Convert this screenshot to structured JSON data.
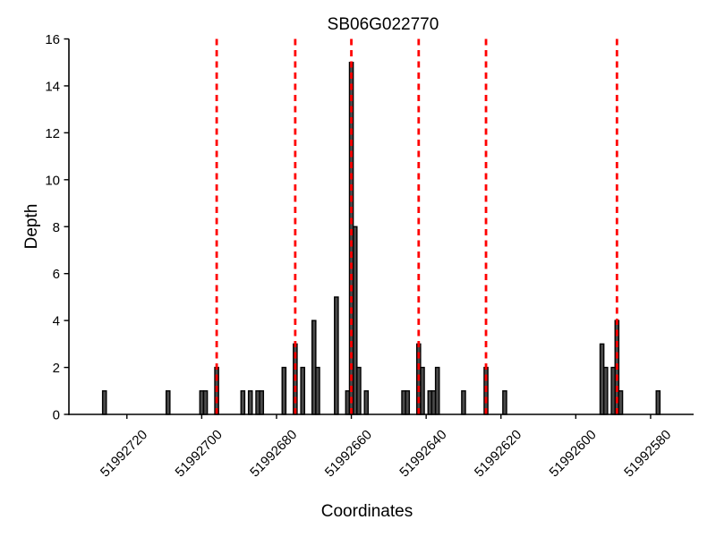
{
  "window": {
    "description": "Read depth pileup plot"
  },
  "chart_data": {
    "type": "bar",
    "title": "SB06G022770",
    "xlabel": "Coordinates",
    "ylabel": "Depth",
    "x_axis_reversed": true,
    "xlim": [
      51992735.5,
      51992568.5
    ],
    "ylim": [
      0,
      16
    ],
    "x_ticks": [
      51992720,
      51992700,
      51992680,
      51992660,
      51992640,
      51992620,
      51992600,
      51992580
    ],
    "y_ticks": [
      0,
      2,
      4,
      6,
      8,
      10,
      12,
      14,
      16
    ],
    "grid": false,
    "legend": null,
    "bars": [
      {
        "coordinate": 51992726,
        "depth": 1
      },
      {
        "coordinate": 51992709,
        "depth": 1
      },
      {
        "coordinate": 51992700,
        "depth": 1
      },
      {
        "coordinate": 51992699,
        "depth": 1
      },
      {
        "coordinate": 51992696,
        "depth": 2
      },
      {
        "coordinate": 51992689,
        "depth": 1
      },
      {
        "coordinate": 51992687,
        "depth": 1
      },
      {
        "coordinate": 51992685,
        "depth": 1
      },
      {
        "coordinate": 51992684,
        "depth": 1
      },
      {
        "coordinate": 51992678,
        "depth": 2
      },
      {
        "coordinate": 51992675,
        "depth": 3
      },
      {
        "coordinate": 51992673,
        "depth": 2
      },
      {
        "coordinate": 51992670,
        "depth": 4
      },
      {
        "coordinate": 51992669,
        "depth": 2
      },
      {
        "coordinate": 51992664,
        "depth": 5
      },
      {
        "coordinate": 51992661,
        "depth": 1
      },
      {
        "coordinate": 51992660,
        "depth": 15
      },
      {
        "coordinate": 51992659,
        "depth": 8
      },
      {
        "coordinate": 51992658,
        "depth": 2
      },
      {
        "coordinate": 51992656,
        "depth": 1
      },
      {
        "coordinate": 51992646,
        "depth": 1
      },
      {
        "coordinate": 51992645,
        "depth": 1
      },
      {
        "coordinate": 51992642,
        "depth": 3
      },
      {
        "coordinate": 51992641,
        "depth": 2
      },
      {
        "coordinate": 51992639,
        "depth": 1
      },
      {
        "coordinate": 51992638,
        "depth": 1
      },
      {
        "coordinate": 51992637,
        "depth": 2
      },
      {
        "coordinate": 51992630,
        "depth": 1
      },
      {
        "coordinate": 51992624,
        "depth": 2
      },
      {
        "coordinate": 51992619,
        "depth": 1
      },
      {
        "coordinate": 51992593,
        "depth": 3
      },
      {
        "coordinate": 51992592,
        "depth": 2
      },
      {
        "coordinate": 51992590,
        "depth": 2
      },
      {
        "coordinate": 51992589,
        "depth": 4
      },
      {
        "coordinate": 51992588,
        "depth": 1
      },
      {
        "coordinate": 51992578,
        "depth": 1
      }
    ],
    "vlines": {
      "style": "dashed",
      "positions": [
        51992696,
        51992675,
        51992660,
        51992642,
        51992624,
        51992589
      ]
    },
    "colors": {
      "bar_fill": "#4a4a4a",
      "bar_edge": "#000000",
      "vline": "#ff0000",
      "axis": "#000000",
      "background": "#ffffff"
    }
  }
}
